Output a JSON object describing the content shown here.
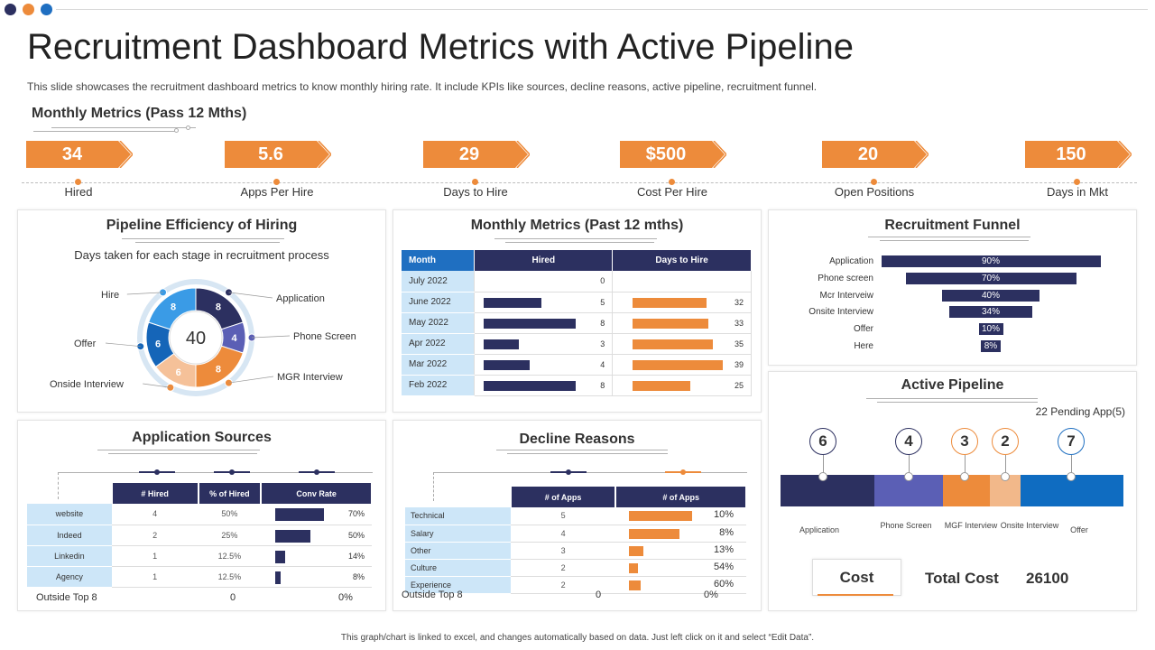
{
  "page": {
    "title": "Recruitment Dashboard Metrics with Active Pipeline",
    "subtitle": "This slide showcases the recruitment dashboard metrics to know monthly hiring rate. It include KPIs like sources, decline reasons, active pipeline, recruitment funnel.",
    "footer": "This graph/chart is linked to excel, and changes automatically based on data. Just left click on it and select “Edit Data”."
  },
  "colors": {
    "navy": "#2c3060",
    "orange": "#ed8b3b",
    "blue": "#1f6fc1",
    "light_blue": "#cde6f8",
    "purple": "#5b5fb5",
    "light_orange": "#f2b88a"
  },
  "kpis": {
    "heading": "Monthly Metrics (Pass 12 Mths)",
    "items": [
      {
        "value": "34",
        "label": "Hired"
      },
      {
        "value": "5.6",
        "label": "Apps Per Hire"
      },
      {
        "value": "29",
        "label": "Days to Hire"
      },
      {
        "value": "$500",
        "label": "Cost Per Hire"
      },
      {
        "value": "20",
        "label": "Open Positions"
      },
      {
        "value": "150",
        "label": "Days in Mkt"
      }
    ]
  },
  "pipeline_efficiency": {
    "title": "Pipeline Efficiency of Hiring",
    "subtitle": "Days taken for each stage in recruitment  process",
    "center_value": "40",
    "stages": [
      {
        "label": "Application",
        "value": 8,
        "color": "#2c3060"
      },
      {
        "label": "Phone Screen",
        "value": 4,
        "color": "#5b5fb5"
      },
      {
        "label": "MGR Interview",
        "value": 8,
        "color": "#ed8b3b"
      },
      {
        "label": "Onside Interview",
        "value": 6,
        "color": "#f5c199"
      },
      {
        "label": "Offer",
        "value": 6,
        "color": "#1565b8"
      },
      {
        "label": "Hire",
        "value": 8,
        "color": "#3a9be6"
      }
    ]
  },
  "monthly_table": {
    "title": "Monthly Metrics (Past 12 mths)",
    "headers": [
      "Month",
      "Hired",
      "Days to Hire"
    ],
    "rows": [
      {
        "month": "July 2022",
        "hired": 0,
        "days": null
      },
      {
        "month": "June 2022",
        "hired": 5,
        "days": 32
      },
      {
        "month": "May 2022",
        "hired": 8,
        "days": 33
      },
      {
        "month": "Apr 2022",
        "hired": 3,
        "days": 35
      },
      {
        "month": "Mar 2022",
        "hired": 4,
        "days": 39
      },
      {
        "month": "Feb 2022",
        "hired": 8,
        "days": 25
      }
    ]
  },
  "funnel": {
    "title": "Recruitment Funnel",
    "rows": [
      {
        "label": "Application",
        "value": "90%",
        "pct": 90
      },
      {
        "label": "Phone screen",
        "value": "70%",
        "pct": 70
      },
      {
        "label": "Mcr Interveiw",
        "value": "40%",
        "pct": 40
      },
      {
        "label": "Onsite Interview",
        "value": "34%",
        "pct": 34
      },
      {
        "label": "Offer",
        "value": "10%",
        "pct": 10
      },
      {
        "label": "Here",
        "value": "8%",
        "pct": 8
      }
    ]
  },
  "sources": {
    "title": "Application Sources",
    "headers": [
      "# Hired",
      "% of Hired",
      "Conv Rate"
    ],
    "rows": [
      {
        "source": "website",
        "hired": "4",
        "pct": "50%",
        "conv": "70%",
        "conv_val": 70
      },
      {
        "source": "Indeed",
        "hired": "2",
        "pct": "25%",
        "conv": "50%",
        "conv_val": 50
      },
      {
        "source": "Linkedin",
        "hired": "1",
        "pct": "12.5%",
        "conv": "14%",
        "conv_val": 14
      },
      {
        "source": "Agency",
        "hired": "1",
        "pct": "12.5%",
        "conv": "8%",
        "conv_val": 8
      }
    ],
    "footer": {
      "label": "Outside Top 8",
      "hired": "0",
      "conv": "0%"
    }
  },
  "decline": {
    "title": "Decline Reasons",
    "headers": [
      "# of Apps",
      "# of Apps"
    ],
    "rows": [
      {
        "reason": "Technical",
        "apps": "5",
        "pct": "10%",
        "bar": 5
      },
      {
        "reason": "Salary",
        "apps": "4",
        "pct": "8%",
        "bar": 4
      },
      {
        "reason": "Other",
        "apps": "3",
        "pct": "13%",
        "bar": 1.1
      },
      {
        "reason": "Culture",
        "apps": "2",
        "pct": "54%",
        "bar": 0.7
      },
      {
        "reason": "Experience",
        "apps": "2",
        "pct": "60%",
        "bar": 0.9
      }
    ],
    "footer": {
      "label": "Outside Top 8",
      "apps": "0",
      "pct": "0%"
    }
  },
  "active_pipeline": {
    "title": "Active Pipeline",
    "pending": "22 Pending App(5)",
    "stages": [
      {
        "count": "6",
        "label": "Application",
        "color": "#2c3060",
        "ring": "#2c3060"
      },
      {
        "count": "4",
        "label": "Phone Screen",
        "color": "#5b5fb5",
        "ring": "#2c3060"
      },
      {
        "count": "3",
        "label": "MGF Interview",
        "color": "#ed8b3b",
        "ring": "#ed8b3b"
      },
      {
        "count": "2",
        "label": "Onsite Interview",
        "color": "#f2b88a",
        "ring": "#ed8b3b"
      },
      {
        "count": "7",
        "label": "Offer",
        "color": "#0f6cc1",
        "ring": "#1f6fc1"
      }
    ],
    "cost_label": "Cost",
    "total_cost_label": "Total Cost",
    "total_cost_value": "26100"
  }
}
